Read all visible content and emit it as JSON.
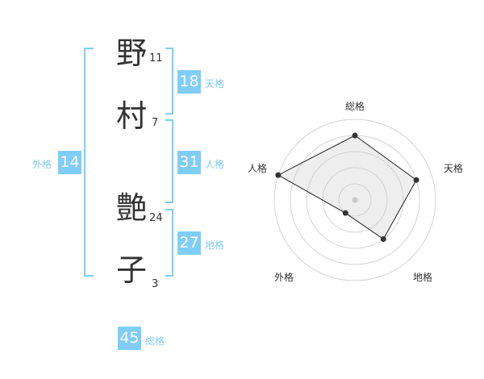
{
  "name": {
    "chars": [
      {
        "char": "野",
        "strokes": "11"
      },
      {
        "char": "村",
        "strokes": "7"
      },
      {
        "char": "艶",
        "strokes": "24"
      },
      {
        "char": "子",
        "strokes": "3"
      }
    ]
  },
  "kaku": {
    "tenkaku": {
      "value": "18",
      "label": "天格"
    },
    "jinkaku": {
      "value": "31",
      "label": "人格"
    },
    "chikaku": {
      "value": "27",
      "label": "地格"
    },
    "gaikaku": {
      "value": "14",
      "label": "外格"
    },
    "soukaku": {
      "value": "45",
      "label": "総格"
    }
  },
  "accent": "#7fcdf9",
  "chart_data": {
    "type": "radar",
    "axes": [
      "総格",
      "天格",
      "地格",
      "外格",
      "人格"
    ],
    "values": [
      4,
      4,
      3,
      1,
      5
    ],
    "range": [
      0,
      5
    ],
    "rings": 5
  }
}
